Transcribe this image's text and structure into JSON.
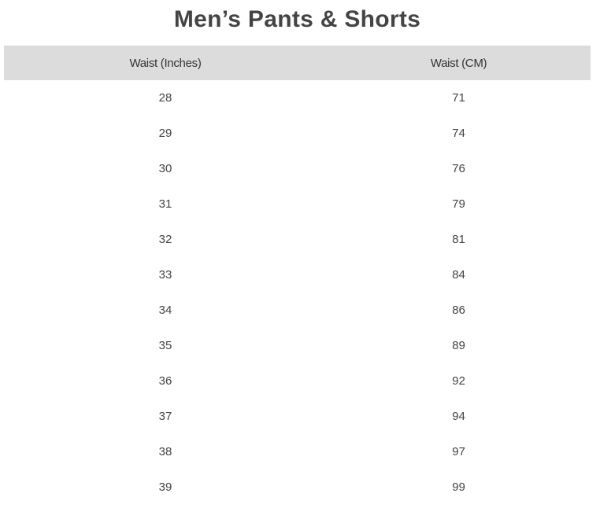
{
  "title": "Men’s Pants & Shorts",
  "table": {
    "headers": [
      "Waist (Inches)",
      "Waist (CM)"
    ],
    "rows": [
      [
        "28",
        "71"
      ],
      [
        "29",
        "74"
      ],
      [
        "30",
        "76"
      ],
      [
        "31",
        "79"
      ],
      [
        "32",
        "81"
      ],
      [
        "33",
        "84"
      ],
      [
        "34",
        "86"
      ],
      [
        "35",
        "89"
      ],
      [
        "36",
        "92"
      ],
      [
        "37",
        "94"
      ],
      [
        "38",
        "97"
      ],
      [
        "39",
        "99"
      ]
    ]
  }
}
